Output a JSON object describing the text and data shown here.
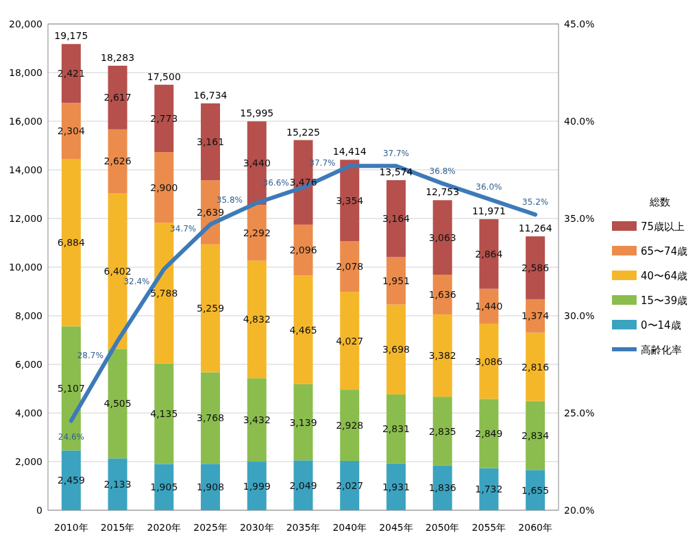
{
  "chart_data": {
    "type": "bar",
    "stacked": true,
    "categories": [
      "2010年",
      "2015年",
      "2020年",
      "2025年",
      "2030年",
      "2035年",
      "2040年",
      "2045年",
      "2050年",
      "2055年",
      "2060年"
    ],
    "series": [
      {
        "name": "0〜14歳",
        "color": "#3ba3c0",
        "values": [
          2459,
          2133,
          1905,
          1908,
          1999,
          2049,
          2027,
          1931,
          1836,
          1732,
          1655
        ],
        "value_labels": [
          "2,459",
          "2,133",
          "1,905",
          "1,908",
          "1,999",
          "2,049",
          "2,027",
          "1,931",
          "1,836",
          "1,732",
          "1,655"
        ]
      },
      {
        "name": "15〜39歳",
        "color": "#8bbd4e",
        "values": [
          5107,
          4505,
          4135,
          3768,
          3432,
          3139,
          2928,
          2831,
          2835,
          2849,
          2834
        ],
        "value_labels": [
          "5,107",
          "4,505",
          "4,135",
          "3,768",
          "3,432",
          "3,139",
          "2,928",
          "2,831",
          "2,835",
          "2,849",
          "2,834"
        ]
      },
      {
        "name": "40〜64歳",
        "color": "#f5b72a",
        "values": [
          6884,
          6402,
          5788,
          5259,
          4832,
          4465,
          4027,
          3698,
          3382,
          3086,
          2816
        ],
        "value_labels": [
          "6,884",
          "6,402",
          "5,788",
          "5,259",
          "4,832",
          "4,465",
          "4,027",
          "3,698",
          "3,382",
          "3,086",
          "2,816"
        ]
      },
      {
        "name": "65〜74歳",
        "color": "#ec8c4c",
        "values": [
          2304,
          2626,
          2900,
          2639,
          2292,
          2096,
          2078,
          1951,
          1636,
          1440,
          1374
        ],
        "value_labels": [
          "2,304",
          "2,626",
          "2,900",
          "2,639",
          "2,292",
          "2,096",
          "2,078",
          "1,951",
          "1,636",
          "1,440",
          "1,374"
        ]
      },
      {
        "name": "75歳以上",
        "color": "#b5504c",
        "values": [
          2421,
          2617,
          2773,
          3161,
          3440,
          3476,
          3354,
          3164,
          3063,
          2864,
          2586
        ],
        "value_labels": [
          "2,421",
          "2,617",
          "2,773",
          "3,161",
          "3,440",
          "3,476",
          "3,354",
          "3,164",
          "3,063",
          "2,864",
          "2,586"
        ]
      },
      {
        "name": "高齢化率",
        "type": "line",
        "axis": "y2",
        "color": "#3d7ab8",
        "values": [
          24.6,
          28.7,
          32.4,
          34.7,
          35.8,
          36.6,
          37.7,
          37.7,
          36.8,
          36.0,
          35.2
        ],
        "value_labels": [
          "24.6%",
          "28.7%",
          "32.4%",
          "34.7%",
          "35.8%",
          "36.6%",
          "37.7%",
          "37.7%",
          "36.8%",
          "36.0%",
          "35.2%"
        ]
      }
    ],
    "totals": [
      "19,175",
      "18,283",
      "17,500",
      "16,734",
      "15,995",
      "15,225",
      "14,414",
      "13,574",
      "12,753",
      "11,971",
      "11,264"
    ],
    "data_labels": true,
    "ylim": [
      0,
      20000
    ],
    "yticks": [
      {
        "value": 0,
        "label": "0"
      },
      {
        "value": 2000,
        "label": "2,000"
      },
      {
        "value": 4000,
        "label": "4,000"
      },
      {
        "value": 6000,
        "label": "6,000"
      },
      {
        "value": 8000,
        "label": "8,000"
      },
      {
        "value": 10000,
        "label": "10,000"
      },
      {
        "value": 12000,
        "label": "12,000"
      },
      {
        "value": 14000,
        "label": "14,000"
      },
      {
        "value": 16000,
        "label": "16,000"
      },
      {
        "value": 18000,
        "label": "18,000"
      },
      {
        "value": 20000,
        "label": "20,000"
      }
    ],
    "y2lim": [
      20,
      45
    ],
    "y2ticks": [
      {
        "value": 20,
        "label": "20.0%"
      },
      {
        "value": 25,
        "label": "25.0%"
      },
      {
        "value": 30,
        "label": "30.0%"
      },
      {
        "value": 35,
        "label": "35.0%"
      },
      {
        "value": 40,
        "label": "40.0%"
      },
      {
        "value": 45,
        "label": "45.0%"
      }
    ],
    "grid": "y",
    "legend": "right",
    "legend_title": "総数",
    "marker": "none",
    "line_style": "solid"
  }
}
